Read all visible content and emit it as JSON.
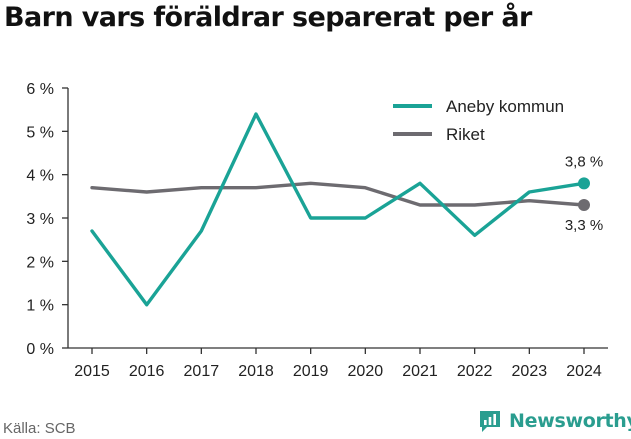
{
  "title": "Barn vars föräldrar separerat per år",
  "source": "Källa: SCB",
  "brand": {
    "name": "Newsworthy",
    "icon": "newsworthy-logo-icon"
  },
  "colors": {
    "aneby": "#1aa396",
    "riket": "#6d6b70",
    "axis": "#333333",
    "logo": "#2a9d8f"
  },
  "chart_data": {
    "type": "line",
    "title": "Barn vars föräldrar separerat per år",
    "xlabel": "",
    "ylabel": "",
    "x": [
      2015,
      2016,
      2017,
      2018,
      2019,
      2020,
      2021,
      2022,
      2023,
      2024
    ],
    "ylim": [
      0,
      6
    ],
    "yticks": [
      0,
      1,
      2,
      3,
      4,
      5,
      6
    ],
    "ytick_labels": [
      "0 %",
      "1 %",
      "2 %",
      "3 %",
      "4 %",
      "5 %",
      "6 %"
    ],
    "grid": false,
    "legend": "top-right",
    "series": [
      {
        "name": "Aneby kommun",
        "values": [
          2.7,
          1.0,
          2.7,
          5.4,
          3.0,
          3.0,
          3.8,
          2.6,
          3.6,
          3.8
        ],
        "end_label": "3,8 %"
      },
      {
        "name": "Riket",
        "values": [
          3.7,
          3.6,
          3.7,
          3.7,
          3.8,
          3.7,
          3.3,
          3.3,
          3.4,
          3.3
        ],
        "end_label": "3,3 %"
      }
    ]
  }
}
